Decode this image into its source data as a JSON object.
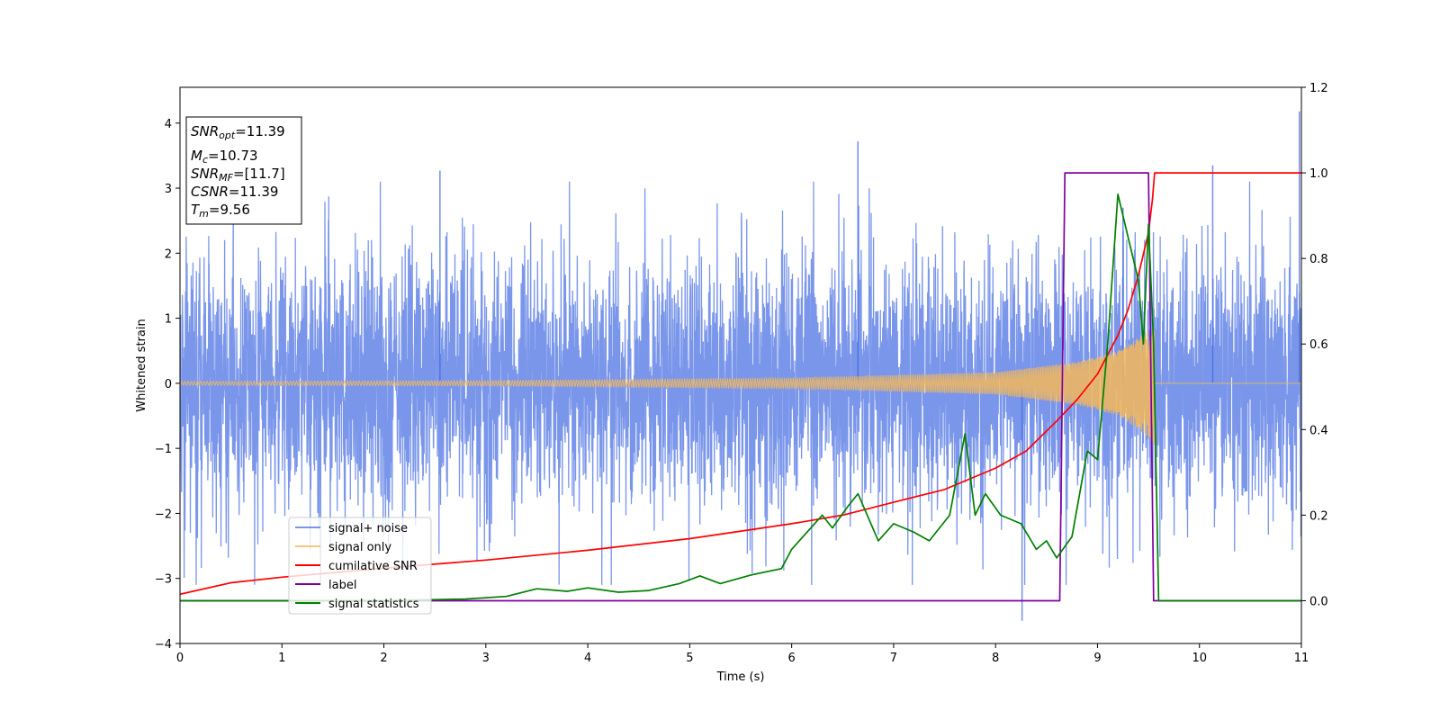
{
  "chart_data": {
    "type": "line",
    "title": "",
    "xlabel": "Time (s)",
    "ylabel": "Whitened strain",
    "xlim": [
      0,
      11
    ],
    "ylim_left": [
      -4,
      4.55
    ],
    "ylim_right": [
      -0.1,
      1.2
    ],
    "xticks": [
      0,
      1,
      2,
      3,
      4,
      5,
      6,
      7,
      8,
      9,
      10,
      11
    ],
    "yticks_left": [
      -4,
      -3,
      -2,
      -1,
      0,
      1,
      2,
      3,
      4
    ],
    "yticks_right": [
      0.0,
      0.2,
      0.4,
      0.6,
      0.8,
      1.0,
      1.2
    ],
    "xtick_labels": [
      "0",
      "1",
      "2",
      "3",
      "4",
      "5",
      "6",
      "7",
      "8",
      "9",
      "10",
      "11"
    ],
    "ytick_labels_left": [
      "−4",
      "−3",
      "−2",
      "−1",
      "0",
      "1",
      "2",
      "3",
      "4"
    ],
    "ytick_labels_right": [
      "0.0",
      "0.2",
      "0.4",
      "0.6",
      "0.8",
      "1.0",
      "1.2"
    ],
    "info_box": {
      "snr_opt": {
        "sym": "SNR",
        "sub": "opt",
        "value": "=11.39"
      },
      "mc": {
        "sym": "M",
        "sub": "c",
        "value": "=10.73"
      },
      "snr_mf": {
        "sym": "SNR",
        "sub": "MF",
        "value": "=[11.7]"
      },
      "csnr": {
        "sym": "CSNR",
        "sub": "",
        "value": "=11.39"
      },
      "tm": {
        "sym": "T",
        "sub": "m",
        "value": "=9.56"
      }
    },
    "legend": {
      "location": "lower-left",
      "entries": [
        {
          "label": "signal+ noise",
          "color": "#4169e1"
        },
        {
          "label": "signal only",
          "color": "#f5b85a"
        },
        {
          "label": "cumilative SNR",
          "color": "#ff0000"
        },
        {
          "label": "label",
          "color": "#8000a0"
        },
        {
          "label": "signal statistics",
          "color": "#008000"
        }
      ]
    },
    "series": [
      {
        "name": "signal+ noise",
        "axis": "left",
        "color": "#4169e1",
        "description": "whitened strain noise band, roughly ±1.7 with spikes to ±3",
        "noise_sigma": 0.95,
        "outliers": [
          [
            8.26,
            -3.65
          ],
          [
            10.98,
            4.18
          ],
          [
            6.65,
            3.72
          ],
          [
            2.55,
            3.27
          ],
          [
            10.13,
            3.35
          ],
          [
            9.25,
            2.7
          ]
        ]
      },
      {
        "name": "signal only",
        "axis": "left",
        "color": "#f5b85a",
        "description": "chirp signal, amplitude grows toward merger at t=9.56",
        "amplitude_points": [
          [
            0,
            0.03
          ],
          [
            3,
            0.04
          ],
          [
            6,
            0.08
          ],
          [
            8,
            0.17
          ],
          [
            8.8,
            0.33
          ],
          [
            9.2,
            0.5
          ],
          [
            9.45,
            0.75
          ],
          [
            9.56,
            0.95
          ]
        ],
        "merger_time": 9.56
      },
      {
        "name": "cumilative SNR",
        "axis": "right",
        "color": "#ff0000",
        "x": [
          0,
          0.5,
          1,
          2,
          3,
          4,
          5,
          6,
          6.5,
          7,
          7.5,
          8,
          8.3,
          8.6,
          8.8,
          9.0,
          9.2,
          9.3,
          9.4,
          9.5,
          9.54,
          9.56,
          10,
          11
        ],
        "values": [
          0.015,
          0.042,
          0.055,
          0.076,
          0.095,
          0.118,
          0.145,
          0.18,
          0.2,
          0.23,
          0.26,
          0.31,
          0.35,
          0.42,
          0.47,
          0.53,
          0.62,
          0.68,
          0.76,
          0.86,
          0.94,
          1.0,
          1.0,
          1.0
        ]
      },
      {
        "name": "label",
        "axis": "right",
        "color": "#8000a0",
        "x": [
          0,
          8.63,
          8.68,
          9.5,
          9.55,
          11
        ],
        "values": [
          0,
          0,
          1,
          1,
          0,
          0
        ]
      },
      {
        "name": "signal statistics",
        "axis": "right",
        "color": "#008000",
        "x": [
          0,
          1,
          2,
          2.8,
          3.2,
          3.5,
          3.8,
          4.0,
          4.3,
          4.6,
          4.9,
          5.1,
          5.3,
          5.6,
          5.9,
          6.0,
          6.15,
          6.3,
          6.4,
          6.55,
          6.65,
          6.85,
          7.0,
          7.2,
          7.35,
          7.55,
          7.7,
          7.8,
          7.9,
          8.05,
          8.25,
          8.4,
          8.5,
          8.6,
          8.75,
          8.9,
          9.0,
          9.1,
          9.2,
          9.3,
          9.4,
          9.45,
          9.5,
          9.55,
          9.6,
          10,
          11
        ],
        "values": [
          0.0,
          0.0,
          0.0,
          0.004,
          0.01,
          0.028,
          0.022,
          0.03,
          0.02,
          0.024,
          0.04,
          0.058,
          0.04,
          0.06,
          0.075,
          0.12,
          0.16,
          0.2,
          0.17,
          0.22,
          0.25,
          0.14,
          0.18,
          0.16,
          0.14,
          0.2,
          0.39,
          0.2,
          0.25,
          0.2,
          0.18,
          0.12,
          0.14,
          0.1,
          0.15,
          0.35,
          0.33,
          0.6,
          0.95,
          0.85,
          0.75,
          0.6,
          0.88,
          0.6,
          0.0,
          0.0,
          0.0
        ]
      }
    ]
  }
}
